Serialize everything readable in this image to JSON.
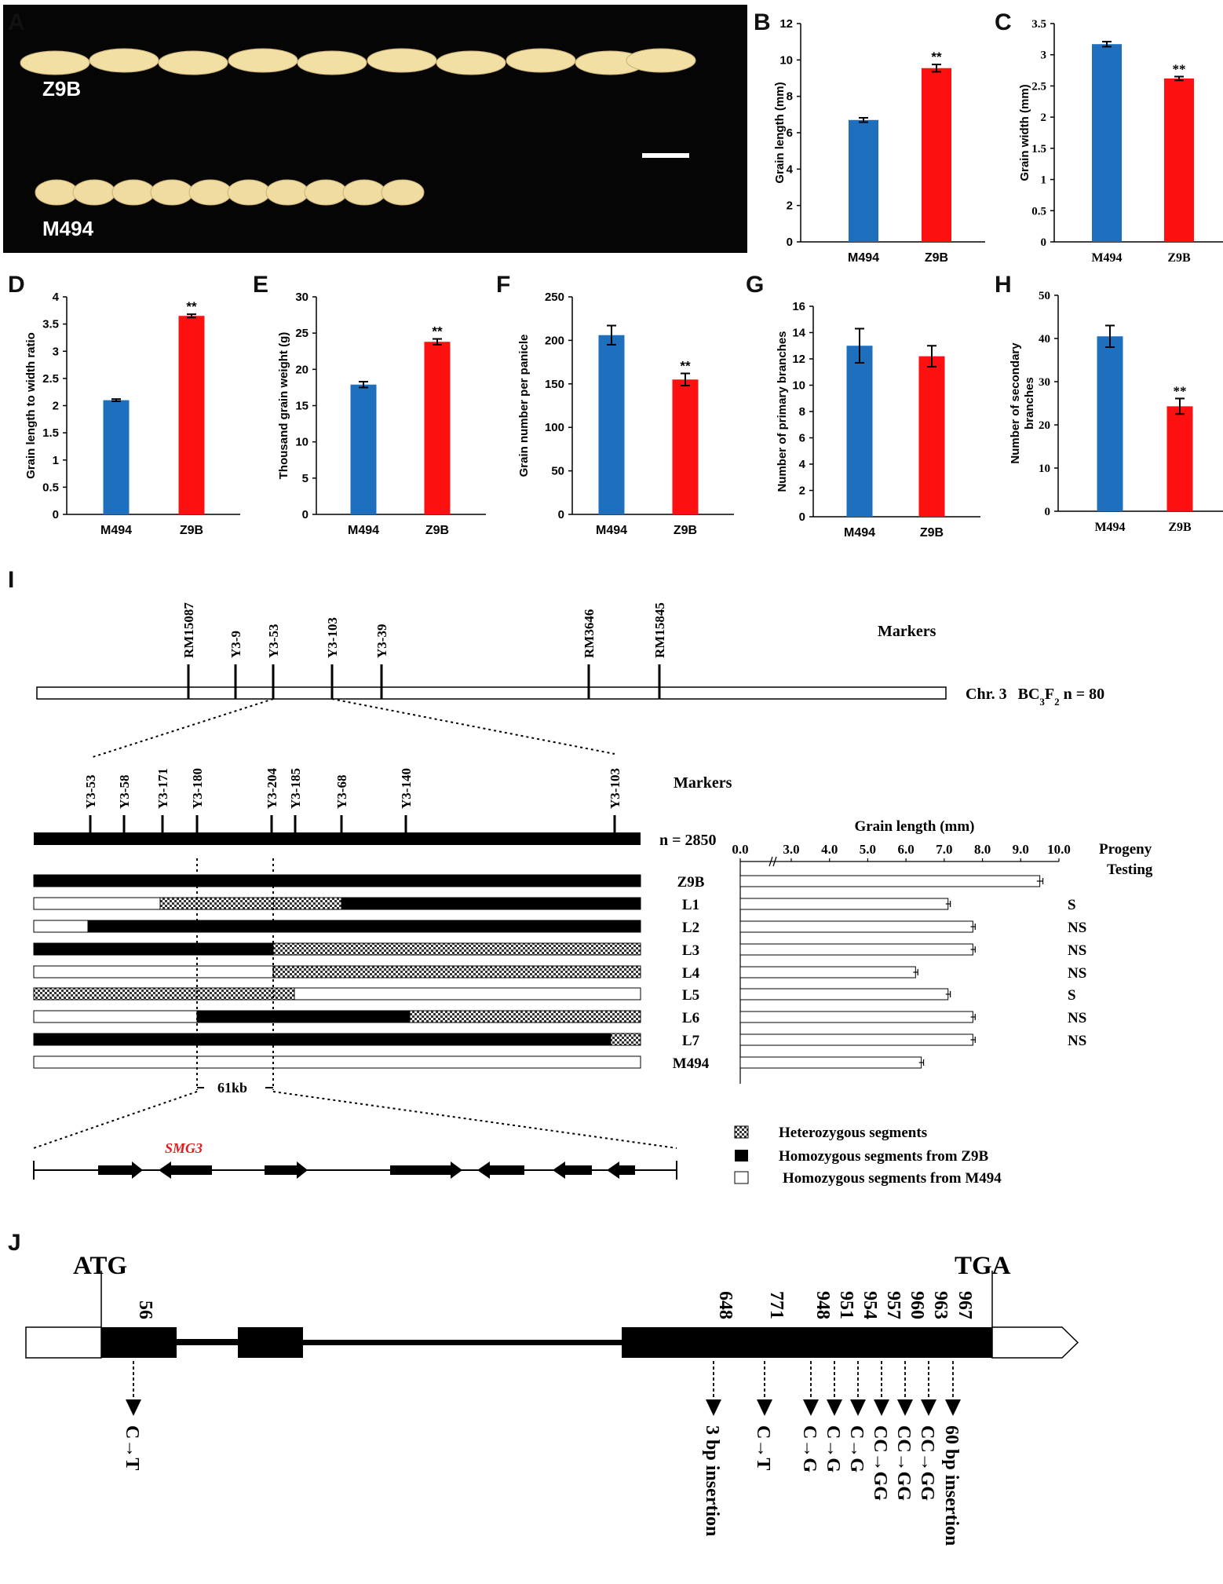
{
  "panel_labels": [
    "A",
    "B",
    "C",
    "D",
    "E",
    "F",
    "G",
    "H",
    "I",
    "J"
  ],
  "photo": {
    "top_label": "Z9B",
    "bottom_label": "M494"
  },
  "chart_data": [
    {
      "panel": "B",
      "type": "bar",
      "categories": [
        "M494",
        "Z9B"
      ],
      "values": [
        6.7,
        9.55
      ],
      "errors": [
        0.12,
        0.2
      ],
      "significance": [
        "",
        "**"
      ],
      "ylabel": "Grain length (mm)",
      "ylim": [
        0,
        12
      ],
      "yticks": [
        "0",
        "2",
        "4",
        "6",
        "8",
        "10",
        "12"
      ],
      "colors": [
        "#1f6fbf",
        "#ff1010"
      ],
      "font": "sans"
    },
    {
      "panel": "C",
      "type": "bar",
      "categories": [
        "M494",
        "Z9B"
      ],
      "values": [
        3.17,
        2.62
      ],
      "errors": [
        0.04,
        0.03
      ],
      "significance": [
        "",
        "**"
      ],
      "ylabel": "Grain width (mm)",
      "ylim": [
        0,
        3.5
      ],
      "yticks": [
        "0",
        "0.5",
        "1",
        "1.5",
        "2",
        "2.5",
        "3",
        "3.5"
      ],
      "colors": [
        "#1f6fbf",
        "#ff1010"
      ],
      "font": "serif"
    },
    {
      "panel": "D",
      "type": "bar",
      "categories": [
        "M494",
        "Z9B"
      ],
      "values": [
        2.1,
        3.65
      ],
      "errors": [
        0.02,
        0.03
      ],
      "significance": [
        "",
        "**"
      ],
      "ylabel": "Grain length to width ratio",
      "ylim": [
        0,
        4
      ],
      "yticks": [
        "0",
        "0.5",
        "1",
        "1.5",
        "2",
        "2.5",
        "3",
        "3.5",
        "4"
      ],
      "colors": [
        "#1f6fbf",
        "#ff1010"
      ],
      "font": "sans"
    },
    {
      "panel": "E",
      "type": "bar",
      "categories": [
        "M494",
        "Z9B"
      ],
      "values": [
        17.9,
        23.8
      ],
      "errors": [
        0.4,
        0.4
      ],
      "significance": [
        "",
        "**"
      ],
      "ylabel": "Thousand grain weight (g)",
      "ylim": [
        0,
        30
      ],
      "yticks": [
        "0",
        "5",
        "10",
        "15",
        "20",
        "25",
        "30"
      ],
      "colors": [
        "#1f6fbf",
        "#ff1010"
      ],
      "font": "sans"
    },
    {
      "panel": "F",
      "type": "bar",
      "categories": [
        "M494",
        "Z9B"
      ],
      "values": [
        206,
        155
      ],
      "errors": [
        11,
        7
      ],
      "significance": [
        "",
        "**"
      ],
      "ylabel": "Grain number per panicle",
      "ylim": [
        0,
        250
      ],
      "yticks": [
        "0",
        "50",
        "100",
        "150",
        "200",
        "250"
      ],
      "colors": [
        "#1f6fbf",
        "#ff1010"
      ],
      "font": "sans"
    },
    {
      "panel": "G",
      "type": "bar",
      "categories": [
        "M494",
        "Z9B"
      ],
      "values": [
        13.0,
        12.2
      ],
      "errors": [
        1.3,
        0.8
      ],
      "significance": [
        "",
        ""
      ],
      "ylabel": "Number of primary branches",
      "ylim": [
        0,
        16
      ],
      "yticks": [
        "0",
        "2",
        "4",
        "6",
        "8",
        "10",
        "12",
        "14",
        "16"
      ],
      "colors": [
        "#1f6fbf",
        "#ff1010"
      ],
      "font": "sans"
    },
    {
      "panel": "H",
      "type": "bar",
      "categories": [
        "M494",
        "Z9B"
      ],
      "values": [
        40.5,
        24.3
      ],
      "errors": [
        2.5,
        1.8
      ],
      "significance": [
        "",
        "**"
      ],
      "ylabel": "Number of secondary branches",
      "ylim": [
        0,
        50
      ],
      "yticks": [
        "0",
        "10",
        "20",
        "30",
        "40",
        "50"
      ],
      "colors": [
        "#1f6fbf",
        "#ff1010"
      ],
      "font": "serif"
    },
    {
      "panel": "I",
      "type": "bar",
      "orientation": "horizontal",
      "title": "Grain length (mm)",
      "xticks": [
        "0.0",
        "3.0",
        "4.0",
        "5.0",
        "6.0",
        "7.0",
        "8.0",
        "9.0",
        "10.0"
      ],
      "categories": [
        "Z9B",
        "L1",
        "L2",
        "L3",
        "L4",
        "L5",
        "L6",
        "L7",
        "M494"
      ],
      "values": [
        9.5,
        7.1,
        7.75,
        7.75,
        6.25,
        7.1,
        7.75,
        7.75,
        6.4
      ],
      "errors": [
        0.08,
        0.06,
        0.06,
        0.06,
        0.06,
        0.06,
        0.06,
        0.06,
        0.06
      ]
    }
  ],
  "mapping": {
    "markers_label": "Markers",
    "top_markers": [
      "RM15087",
      "Y3-9",
      "Y3-53",
      "Y3-103",
      "Y3-39",
      "RM3646",
      "RM15845"
    ],
    "chr_label": "Chr. 3",
    "population_prefix": "BC",
    "population_sub1": "3",
    "population_mid": "F",
    "population_sub2": "2",
    "population_suffix": " n = 80",
    "fine_markers": [
      "Y3-53",
      "Y3-58",
      "Y3-171",
      "Y3-180",
      "Y3-204",
      "Y3-185",
      "Y3-68",
      "Y3-140",
      "Y3-103"
    ],
    "fine_n": "n = 2850",
    "interval_label": "61kb",
    "gene_label": "SMG3",
    "progeny_title_1": "Progeny",
    "progeny_title_2": "Testing",
    "lines": [
      {
        "name": "Z9B",
        "progeny": ""
      },
      {
        "name": "L1",
        "progeny": "S"
      },
      {
        "name": "L2",
        "progeny": "NS"
      },
      {
        "name": "L3",
        "progeny": "NS"
      },
      {
        "name": "L4",
        "progeny": "NS"
      },
      {
        "name": "L5",
        "progeny": "S"
      },
      {
        "name": "L6",
        "progeny": "NS"
      },
      {
        "name": "L7",
        "progeny": "NS"
      },
      {
        "name": "M494",
        "progeny": ""
      }
    ],
    "legend": [
      "Heterozygous segments",
      "Homozygous segments from Z9B",
      "Homozygous segments from M494"
    ]
  },
  "gene_structure": {
    "start_codon": "ATG",
    "stop_codon": "TGA",
    "positions": [
      "56",
      "648",
      "771",
      "948",
      "951",
      "954",
      "957",
      "960",
      "963",
      "967"
    ],
    "variants": [
      "C→T",
      "3 bp insertion",
      "C→T",
      "C→G",
      "C→G",
      "C→G",
      "CC→GG",
      "CC→GG",
      "CC→GG",
      "60 bp insertion"
    ]
  }
}
